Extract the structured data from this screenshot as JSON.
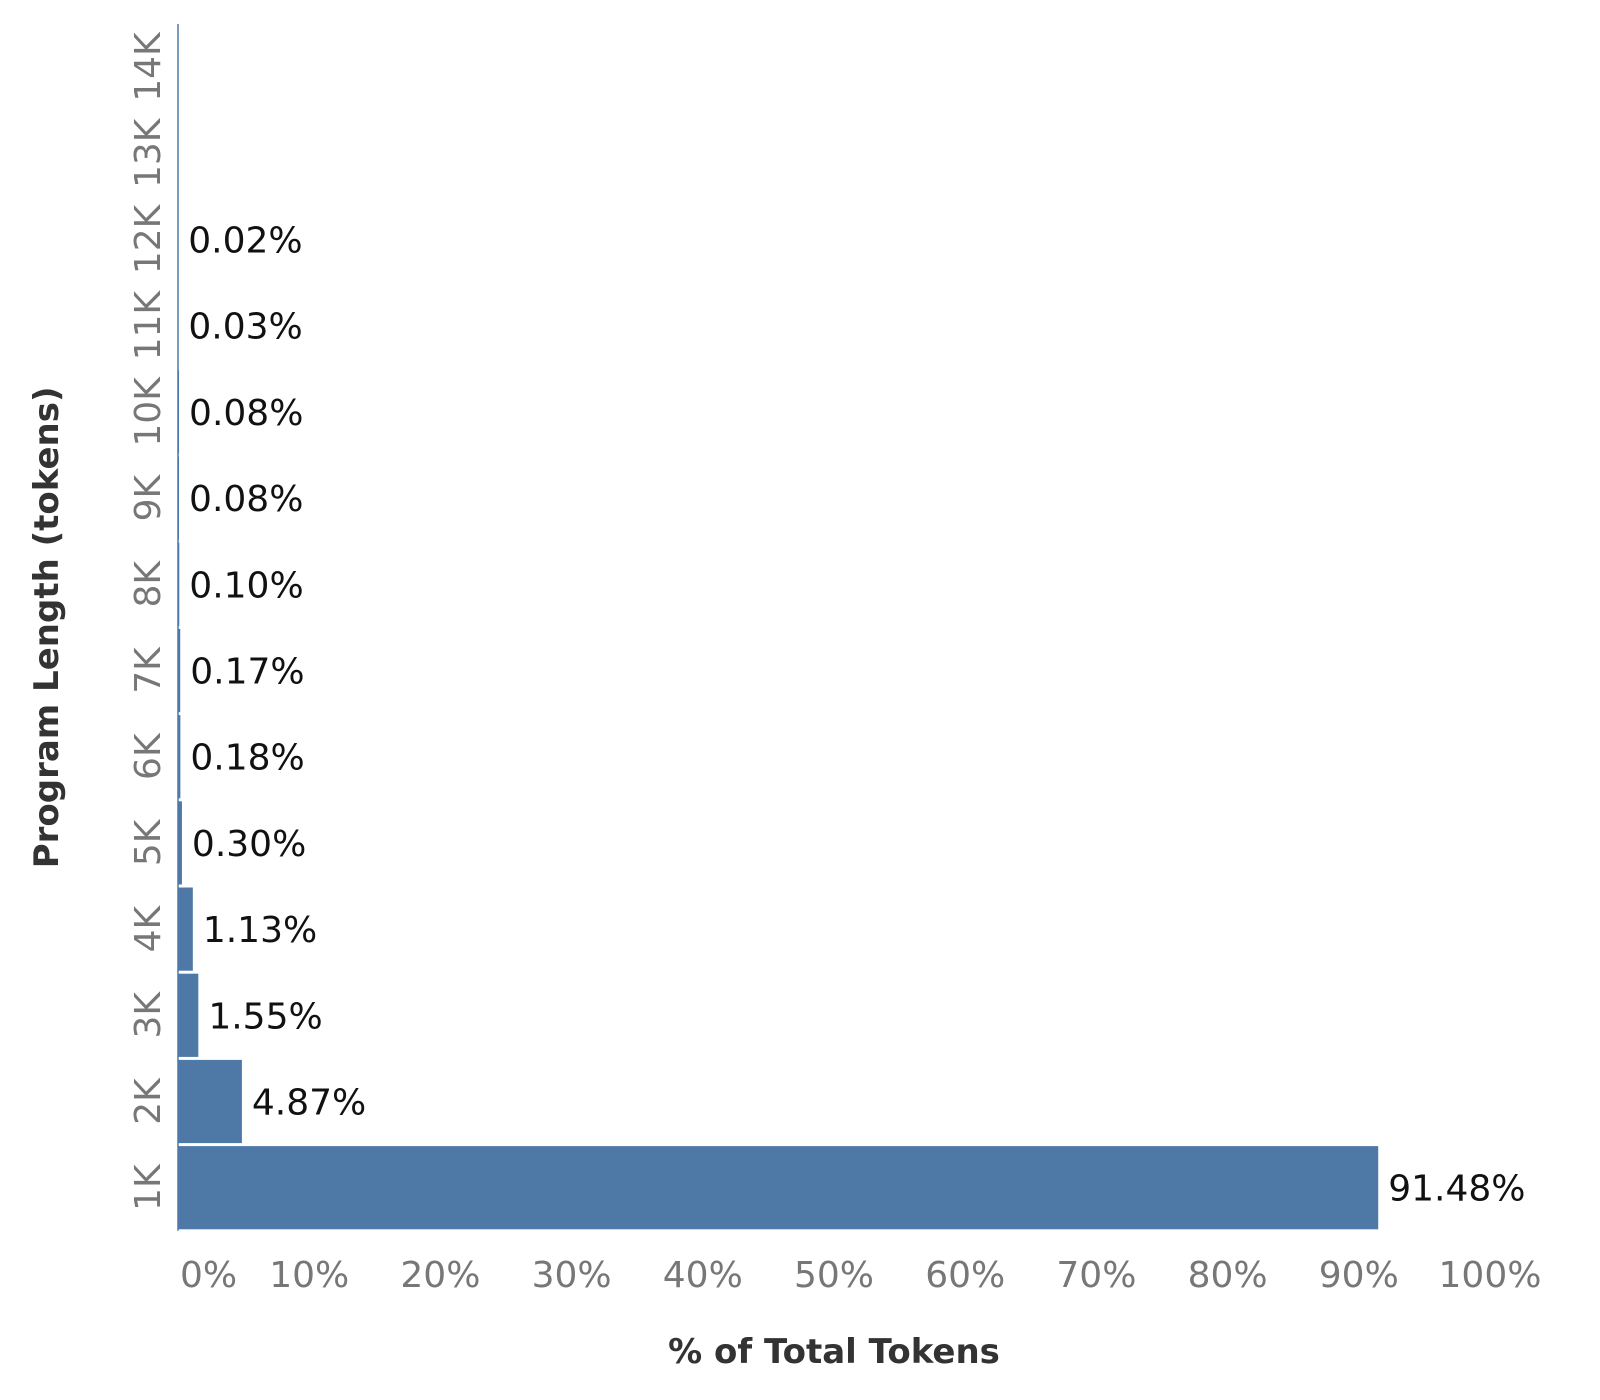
{
  "chart_data": {
    "type": "bar",
    "orientation": "horizontal",
    "categories": [
      "1K",
      "2K",
      "3K",
      "4K",
      "5K",
      "6K",
      "7K",
      "8K",
      "9K",
      "10K",
      "11K",
      "12K",
      "13K",
      "14K"
    ],
    "values": [
      91.48,
      4.87,
      1.55,
      1.13,
      0.3,
      0.18,
      0.17,
      0.1,
      0.08,
      0.08,
      0.03,
      0.02,
      0,
      0
    ],
    "data_labels": [
      "91.48%",
      "4.87%",
      "1.55%",
      "1.13%",
      "0.30%",
      "0.18%",
      "0.17%",
      "0.10%",
      "0.08%",
      "0.08%",
      "0.03%",
      "0.02%",
      "",
      ""
    ],
    "x_ticks": [
      "0%",
      "10%",
      "20%",
      "30%",
      "40%",
      "50%",
      "60%",
      "70%",
      "80%",
      "90%",
      "100%"
    ],
    "x_tick_values": [
      0,
      10,
      20,
      30,
      40,
      50,
      60,
      70,
      80,
      90,
      100
    ],
    "xlim": [
      0,
      100
    ],
    "xlabel": "% of Total Tokens",
    "ylabel": "Program Length (tokens)",
    "grid": false,
    "bar_color": "#4e79a7"
  }
}
